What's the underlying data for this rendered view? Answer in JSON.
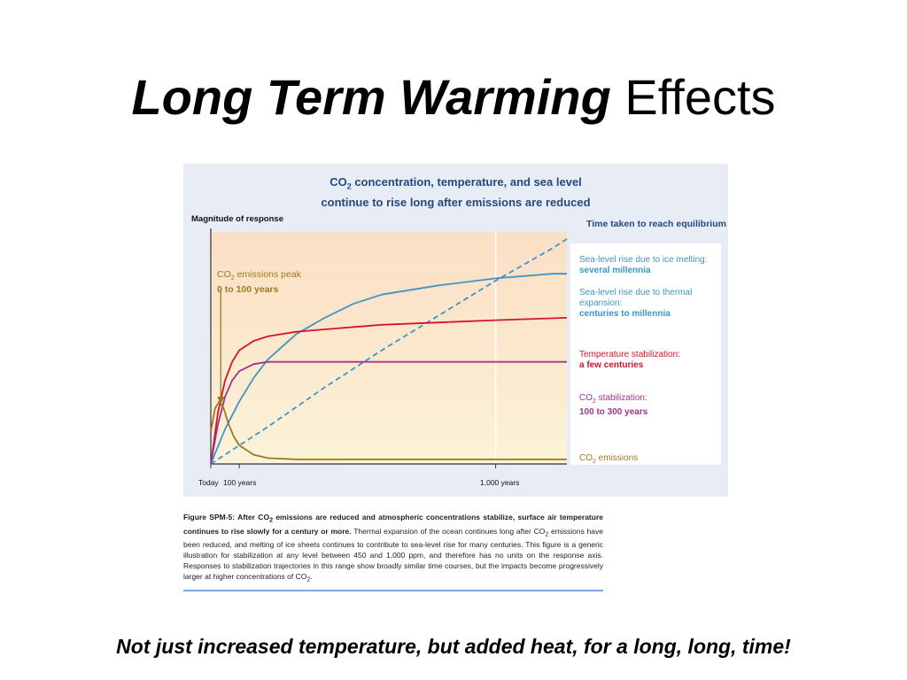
{
  "slide": {
    "title_strong": "Long Term Warming",
    "title_plain": "Effects",
    "footer": "Not just increased temperature, but added heat, for a long, long, time!"
  },
  "figure": {
    "title_pre": "CO",
    "title_sub": "2",
    "title_post": " concentration, temperature, and sea level",
    "title_line2": "continue to rise long after emissions are reduced",
    "equilibrium_heading": "Time taken to reach equilibrium",
    "peak_pre": "CO",
    "peak_sub": "2",
    "peak_post": " emissions peak",
    "peak_range": "0 to 100 years",
    "legend": {
      "ice_text": "Sea-level rise due to ice melting:",
      "ice_time": "several millennia",
      "thermal_text": "Sea-level rise due to thermal expansion:",
      "thermal_time": "centuries to millennia",
      "temp_text": "Temperature stabilization:",
      "temp_time": "a few centuries",
      "co2stab_pre": "CO",
      "co2stab_sub": "2",
      "co2stab_post": " stabilization:",
      "co2stab_time": "100 to 300 years",
      "emis_pre": "CO",
      "emis_sub": "2",
      "emis_post": " emissions"
    }
  },
  "caption": {
    "lead_a": "Figure SPM-5: After CO",
    "lead_sub": "2",
    "lead_b": " emissions are reduced and atmospheric concentrations stabilize, surface air temperature continues to rise slowly for a century or more.",
    "body_a": " Thermal expansion of the ocean continues long after CO",
    "body_sub": "2",
    "body_b": " emissions have been reduced, and melting of ice sheets continues to contribute to sea-level rise for many centuries. This figure is a generic illustration for stabilization at any level between 450 and 1,000 ppm, and therefore has no units on the response axis. Responses to stabilization trajectories in this range show broadly similar time courses, but the impacts become progressively larger at higher concentrations of CO",
    "body_sub2": "2",
    "body_c": "."
  },
  "chart_data": {
    "type": "line",
    "title": "CO2 concentration, temperature, and sea level continue to rise long after emissions are reduced",
    "ylabel": "Magnitude of response",
    "xlabel": "",
    "xlim": [
      0,
      1250
    ],
    "ylim": [
      0,
      1
    ],
    "x_tick_labels": [
      "Today",
      "100 years",
      "1,000 years"
    ],
    "x_ticks": [
      0,
      100,
      1000
    ],
    "series": [
      {
        "name": "Sea-level rise due to ice melting",
        "color": "#3d95c8",
        "dash": true,
        "x": [
          0,
          100,
          200,
          400,
          600,
          800,
          1000,
          1200,
          1250
        ],
        "y": [
          0,
          0.08,
          0.16,
          0.33,
          0.49,
          0.64,
          0.79,
          0.93,
          0.97
        ]
      },
      {
        "name": "Sea-level rise due to thermal expansion",
        "color": "#3d95c8",
        "dash": false,
        "x": [
          0,
          50,
          100,
          150,
          200,
          300,
          400,
          500,
          600,
          800,
          1000,
          1200,
          1250
        ],
        "y": [
          0,
          0.15,
          0.27,
          0.37,
          0.45,
          0.56,
          0.63,
          0.69,
          0.73,
          0.77,
          0.8,
          0.82,
          0.82
        ]
      },
      {
        "name": "Temperature stabilization",
        "color": "#d4142b",
        "dash": false,
        "x": [
          0,
          25,
          50,
          75,
          100,
          150,
          200,
          300,
          400,
          600,
          800,
          1000,
          1250
        ],
        "y": [
          0,
          0.22,
          0.36,
          0.44,
          0.49,
          0.53,
          0.55,
          0.57,
          0.58,
          0.6,
          0.61,
          0.62,
          0.63
        ]
      },
      {
        "name": "CO2 stabilization",
        "color": "#a3338b",
        "dash": false,
        "x": [
          0,
          25,
          50,
          75,
          100,
          150,
          200,
          250,
          300,
          500,
          800,
          1000,
          1250
        ],
        "y": [
          0,
          0.17,
          0.29,
          0.36,
          0.4,
          0.43,
          0.44,
          0.44,
          0.44,
          0.44,
          0.44,
          0.44,
          0.44
        ]
      },
      {
        "name": "CO2 emissions",
        "color": "#9d7a1e",
        "dash": false,
        "x": [
          0,
          15,
          30,
          45,
          60,
          80,
          100,
          150,
          200,
          300,
          500,
          1000,
          1250
        ],
        "y": [
          0.14,
          0.24,
          0.27,
          0.24,
          0.18,
          0.12,
          0.08,
          0.04,
          0.025,
          0.02,
          0.02,
          0.02,
          0.02
        ]
      }
    ],
    "annotations": [
      {
        "text": "CO2 emissions peak 0 to 100 years",
        "x": 35
      }
    ]
  }
}
